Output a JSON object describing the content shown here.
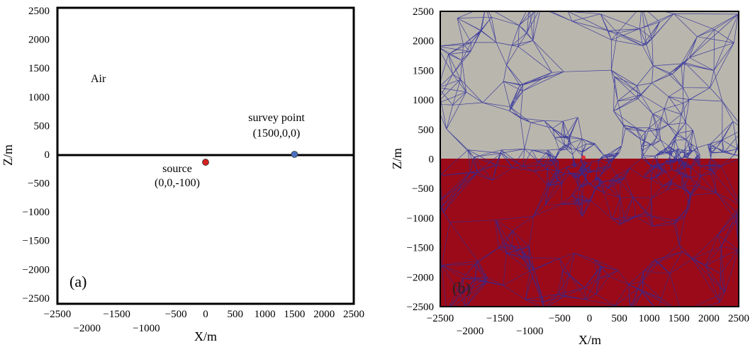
{
  "panel_a": {
    "label": "(a)",
    "xlabel": "X/m",
    "ylabel": "Z/m",
    "xlim": [
      -2500,
      2500
    ],
    "ylim": [
      -2600,
      2550
    ],
    "x_ticks_upper": [
      "−2500",
      "−1500",
      "−500",
      "0",
      "500",
      "1000",
      "1500",
      "2000",
      "2500"
    ],
    "x_ticks_lower": [
      "−2000",
      "−1000"
    ],
    "y_ticks": [
      "2500",
      "2000",
      "1500",
      "1000",
      "500",
      "0",
      "−500",
      "−1000",
      "−1500",
      "−2000",
      "−2500"
    ],
    "air_label": "Air",
    "source_label": "source",
    "source_coords": "(0,0,-100)",
    "survey_label": "survey point",
    "survey_coords": "(1500,0,0)",
    "source_point": {
      "x": 0,
      "z": -100,
      "color": "#d62020"
    },
    "survey_point": {
      "x": 1500,
      "z": 0,
      "color": "#4a6fc0"
    },
    "interface_z": 0
  },
  "panel_b": {
    "label": "(b)",
    "xlabel": "X/m",
    "ylabel": "Z/m",
    "xlim": [
      -2500,
      2500
    ],
    "ylim": [
      -2500,
      2500
    ],
    "x_ticks_upper": [
      "−2500",
      "−1500",
      "−500",
      "0",
      "500",
      "1000",
      "1500",
      "2000",
      "2500"
    ],
    "x_ticks_lower": [
      "−2000",
      "−1000"
    ],
    "y_ticks": [
      "2500",
      "2000",
      "1500",
      "1000",
      "500",
      "0",
      "−500",
      "−1000",
      "−1500",
      "−2000",
      "−2500"
    ],
    "air_color": "#b9b6ad",
    "ground_color": "#9b0a18",
    "mesh_color": "#2a2a9a",
    "refine_centers": [
      {
        "x": -100,
        "z": -200
      },
      {
        "x": 1500,
        "z": 0
      }
    ]
  }
}
